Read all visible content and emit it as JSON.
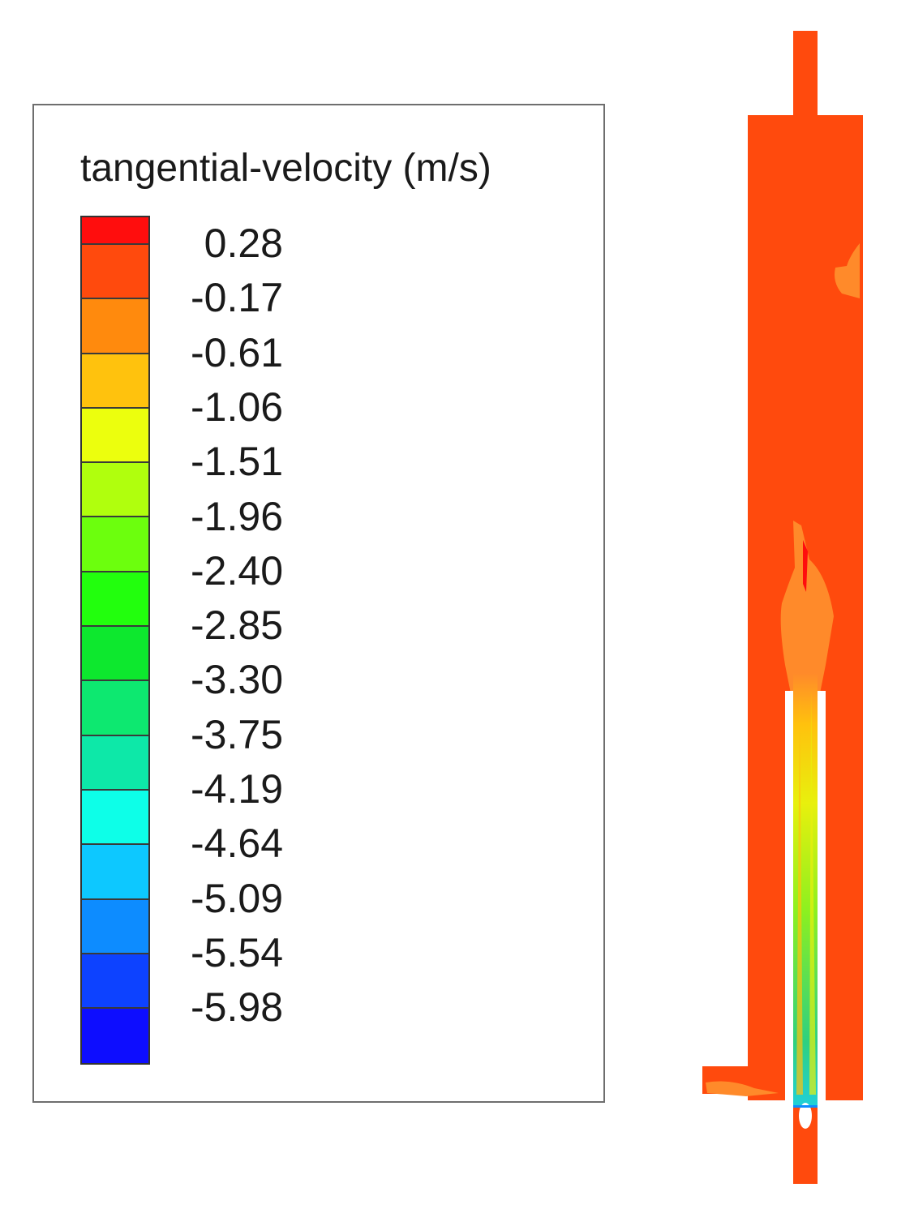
{
  "legend": {
    "title": "tangential-velocity (m/s)",
    "levels": [
      "0.28",
      "-0.17",
      "-0.61",
      "-1.06",
      "-1.51",
      "-1.96",
      "-2.40",
      "-2.85",
      "-3.30",
      "-3.75",
      "-4.19",
      "-4.64",
      "-5.09",
      "-5.54",
      "-5.98"
    ],
    "colors": [
      "#ff0d0d",
      "#ff4a0d",
      "#ff8a0d",
      "#ffc20d",
      "#ecff0d",
      "#b0ff0d",
      "#6cff0d",
      "#22ff0d",
      "#0de82e",
      "#0de870",
      "#0de8a8",
      "#0dffe8",
      "#0dc8ff",
      "#0d8cff",
      "#0d42ff",
      "#0d0dff"
    ]
  },
  "colors": {
    "domain_fill": "#ff4a0d",
    "domain_patch": "#ff8a2a",
    "core_yellow": "#e8f00d",
    "core_green": "#2fd060",
    "core_cyan": "#20d0d8"
  }
}
